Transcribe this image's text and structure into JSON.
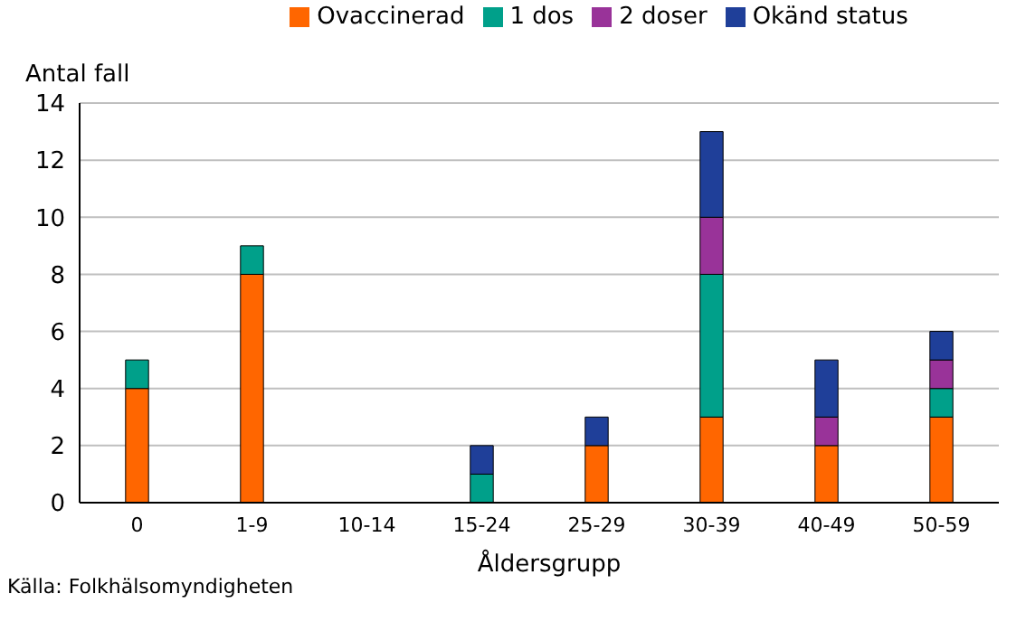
{
  "chart_data": {
    "type": "bar",
    "stacked": true,
    "ylabel": "Antal fall",
    "xlabel": "Åldersgrupp",
    "annotations": [
      "Källa: Folkhälsomyndigheten"
    ],
    "categories": [
      "0",
      "1-9",
      "10-14",
      "15-24",
      "25-29",
      "30-39",
      "40-49",
      "50-59"
    ],
    "series": [
      {
        "name": "Ovaccinerad",
        "color": "#ff6600",
        "values": [
          4,
          8,
          0,
          0,
          2,
          3,
          2,
          3
        ]
      },
      {
        "name": "1 dos",
        "color": "#00a08a",
        "values": [
          1,
          1,
          0,
          1,
          0,
          5,
          0,
          1
        ]
      },
      {
        "name": "2 doser",
        "color": "#993399",
        "values": [
          0,
          0,
          0,
          0,
          0,
          2,
          1,
          1
        ]
      },
      {
        "name": "Okänd status",
        "color": "#1f3f99",
        "values": [
          0,
          0,
          0,
          1,
          1,
          3,
          2,
          1
        ]
      }
    ],
    "ylim": [
      0,
      14
    ],
    "yticks": [
      0,
      2,
      4,
      6,
      8,
      10,
      12,
      14
    ],
    "grid": "y",
    "legend": "top"
  }
}
